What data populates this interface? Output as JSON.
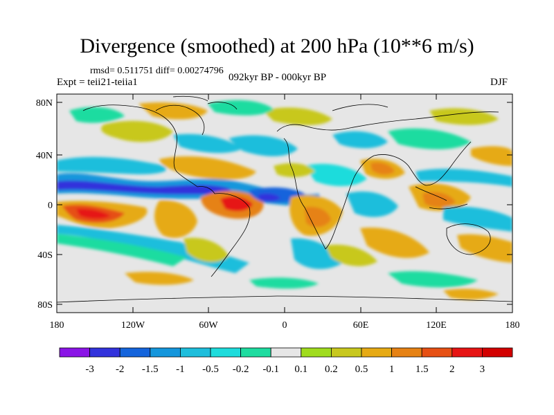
{
  "title": "Divergence (smoothed) at 200 hPa (10**6 m/s)",
  "stats": "rmsd= 0.511751 diff= 0.00274796",
  "experiment": "Expt = teii21-teiia1",
  "period": "092kyr BP - 000kyr BP",
  "season": "DJF",
  "map": {
    "lat_ticks": [
      "80N",
      "40N",
      "0",
      "40S",
      "80S"
    ],
    "lon_ticks": [
      "180",
      "120W",
      "60W",
      "0",
      "60E",
      "120E",
      "180"
    ],
    "background_color": "#e6e6e6"
  },
  "colorbar": {
    "labels": [
      "-3",
      "-2",
      "-1.5",
      "-1",
      "-0.5",
      "-0.2",
      "-0.1",
      "0.1",
      "0.2",
      "0.5",
      "1",
      "1.5",
      "2",
      "3"
    ],
    "colors": [
      "#8a14e6",
      "#3232dc",
      "#1464dc",
      "#1496dc",
      "#1ebedc",
      "#1edcdc",
      "#1edca0",
      "#e6e6e6",
      "#a0dc1e",
      "#c8c81e",
      "#e6aa14",
      "#e68214",
      "#e65014",
      "#e61414",
      "#d20000"
    ]
  }
}
